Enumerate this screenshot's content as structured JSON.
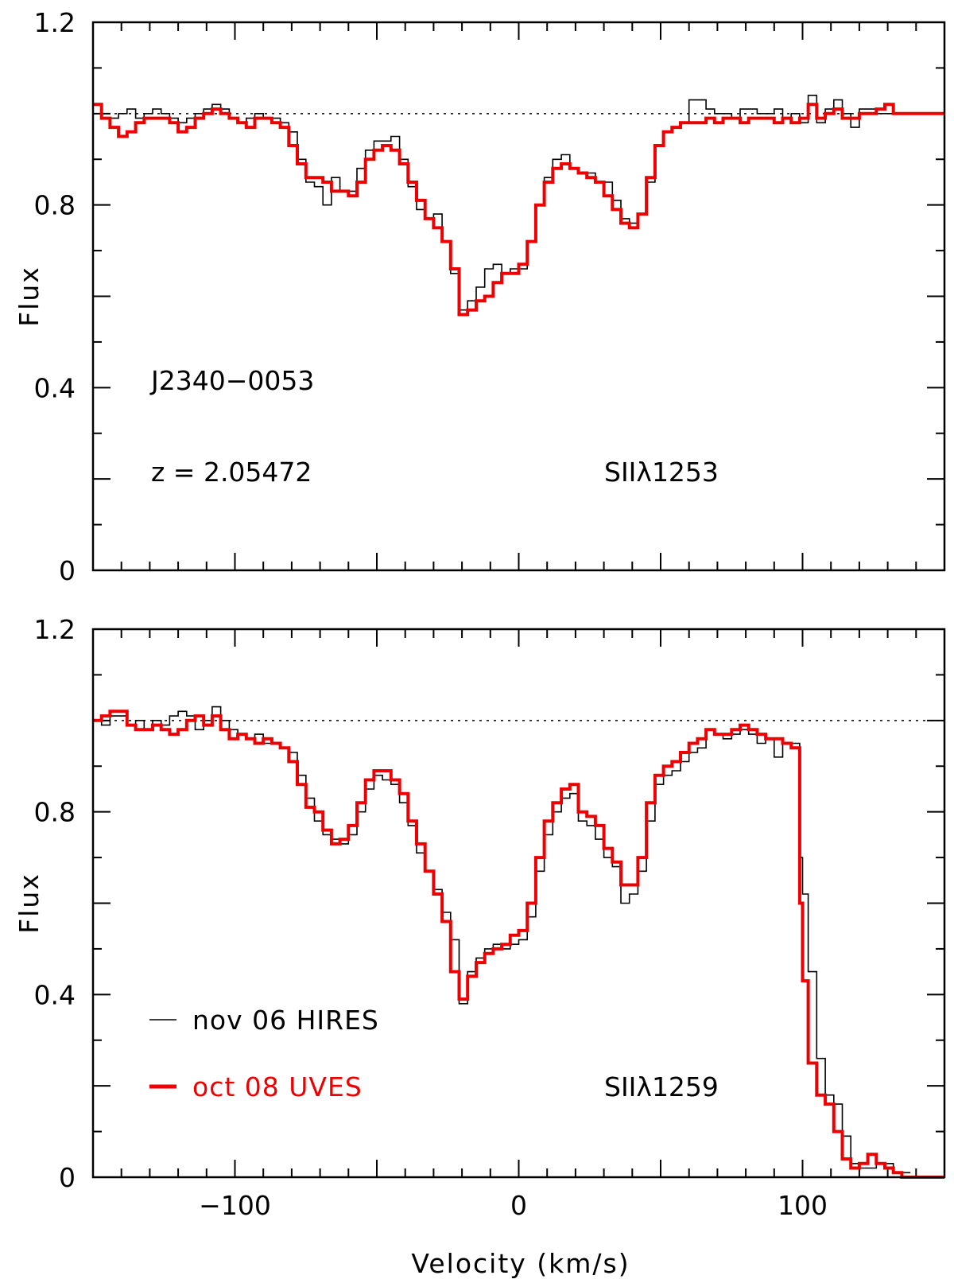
{
  "chart_data": [
    {
      "type": "line",
      "ylabel": "Flux",
      "xlabel": "",
      "xlim": [
        -150,
        150
      ],
      "ylim": [
        0,
        1.2
      ],
      "yticks": [
        "0",
        "0.4",
        "0.8",
        "1.2"
      ],
      "xticks": [],
      "continuum": 1.0,
      "annotations": {
        "object": "J2340−0053",
        "redshift": "z  =  2.05472",
        "line": "SIIλ1253"
      },
      "series": [
        {
          "name": "nov 06 HIRES",
          "color": "#000000",
          "x": [
            -150,
            -147,
            -144,
            -141,
            -138,
            -135,
            -132,
            -129,
            -126,
            -123,
            -120,
            -117,
            -114,
            -111,
            -108,
            -105,
            -102,
            -99,
            -96,
            -93,
            -90,
            -87,
            -84,
            -81,
            -78,
            -75,
            -72,
            -69,
            -66,
            -63,
            -60,
            -57,
            -54,
            -51,
            -48,
            -45,
            -42,
            -39,
            -36,
            -33,
            -30,
            -27,
            -24,
            -21,
            -18,
            -15,
            -12,
            -9,
            -6,
            -3,
            0,
            3,
            6,
            9,
            12,
            15,
            18,
            21,
            24,
            27,
            30,
            33,
            36,
            39,
            42,
            45,
            48,
            51,
            54,
            57,
            60,
            63,
            66,
            69,
            72,
            75,
            78,
            81,
            84,
            87,
            90,
            93,
            96,
            99,
            102,
            105,
            108,
            111,
            114,
            117,
            120,
            123,
            126,
            129
          ],
          "y": [
            1.0,
            0.99,
            0.99,
            1.0,
            1.01,
            0.99,
            1.0,
            1.01,
            1.0,
            0.99,
            0.98,
            0.99,
            1.0,
            1.01,
            1.02,
            1.01,
            0.99,
            0.98,
            0.99,
            1.0,
            0.99,
            0.99,
            0.98,
            0.96,
            0.9,
            0.85,
            0.84,
            0.8,
            0.86,
            0.83,
            0.83,
            0.88,
            0.92,
            0.94,
            0.94,
            0.95,
            0.9,
            0.84,
            0.79,
            0.77,
            0.78,
            0.72,
            0.65,
            0.57,
            0.59,
            0.62,
            0.66,
            0.67,
            0.65,
            0.66,
            0.66,
            0.72,
            0.8,
            0.86,
            0.9,
            0.91,
            0.88,
            0.87,
            0.87,
            0.85,
            0.85,
            0.81,
            0.77,
            0.76,
            0.78,
            0.85,
            0.93,
            0.96,
            0.97,
            0.98,
            1.03,
            1.03,
            1.01,
            1.0,
            1.0,
            0.99,
            1.01,
            1.01,
            1.0,
            1.0,
            1.01,
            0.99,
            1.0,
            0.98,
            1.04,
            0.98,
            1.01,
            1.03,
            1.0,
            0.97,
            1.01,
            1.01,
            1.0,
            1.0
          ]
        },
        {
          "name": "oct 08 UVES",
          "color": "#ee0000",
          "x": [
            -150,
            -147,
            -144,
            -141,
            -138,
            -135,
            -132,
            -129,
            -126,
            -123,
            -120,
            -117,
            -114,
            -111,
            -108,
            -105,
            -102,
            -99,
            -96,
            -93,
            -90,
            -87,
            -84,
            -81,
            -78,
            -75,
            -72,
            -69,
            -66,
            -63,
            -60,
            -57,
            -54,
            -51,
            -48,
            -45,
            -42,
            -39,
            -36,
            -33,
            -30,
            -27,
            -24,
            -21,
            -18,
            -15,
            -12,
            -9,
            -6,
            -3,
            0,
            3,
            6,
            9,
            12,
            15,
            18,
            21,
            24,
            27,
            30,
            33,
            36,
            39,
            42,
            45,
            48,
            51,
            54,
            57,
            60,
            63,
            66,
            69,
            72,
            75,
            78,
            81,
            84,
            87,
            90,
            93,
            96,
            99,
            102,
            105,
            108,
            111,
            114,
            117,
            120,
            123,
            126,
            129,
            132,
            135,
            138,
            141,
            144,
            147,
            150
          ],
          "y": [
            1.02,
            0.99,
            0.97,
            0.95,
            0.96,
            0.98,
            0.99,
            0.99,
            0.99,
            0.98,
            0.96,
            0.97,
            0.99,
            1.0,
            1.01,
            1.0,
            0.99,
            0.98,
            0.97,
            0.99,
            0.99,
            0.98,
            0.97,
            0.93,
            0.89,
            0.86,
            0.86,
            0.85,
            0.83,
            0.83,
            0.82,
            0.85,
            0.9,
            0.92,
            0.93,
            0.92,
            0.89,
            0.85,
            0.81,
            0.77,
            0.75,
            0.72,
            0.66,
            0.56,
            0.57,
            0.59,
            0.6,
            0.63,
            0.65,
            0.65,
            0.67,
            0.72,
            0.8,
            0.85,
            0.88,
            0.89,
            0.88,
            0.87,
            0.86,
            0.85,
            0.82,
            0.79,
            0.76,
            0.75,
            0.78,
            0.86,
            0.93,
            0.96,
            0.97,
            0.98,
            0.98,
            0.98,
            0.99,
            0.98,
            0.99,
            0.99,
            0.98,
            0.99,
            0.99,
            0.99,
            0.98,
            0.99,
            0.98,
            0.99,
            1.02,
            0.99,
            1.0,
            1.01,
            0.99,
            0.99,
            1.0,
            1.0,
            1.01,
            1.02,
            1.0,
            1.0,
            1.0,
            1.0,
            1.0,
            1.0,
            1.0
          ]
        }
      ]
    },
    {
      "type": "line",
      "ylabel": "Flux",
      "xlabel": "Velocity (km/s)",
      "xlim": [
        -150,
        150
      ],
      "ylim": [
        0,
        1.2
      ],
      "yticks": [
        "0",
        "0.4",
        "0.8",
        "1.2"
      ],
      "xticks": [
        "−100",
        "0",
        "100"
      ],
      "xtick_values": [
        -100,
        0,
        100
      ],
      "continuum": 1.0,
      "annotations": {
        "line": "SIIλ1259"
      },
      "legend": [
        {
          "label": "nov 06 HIRES",
          "color": "#000000"
        },
        {
          "label": "oct 08 UVES",
          "color": "#ee0000"
        }
      ],
      "series": [
        {
          "name": "nov 06 HIRES",
          "color": "#000000",
          "x": [
            -150,
            -147,
            -144,
            -141,
            -138,
            -135,
            -132,
            -129,
            -126,
            -123,
            -120,
            -117,
            -114,
            -111,
            -108,
            -105,
            -102,
            -99,
            -96,
            -93,
            -90,
            -87,
            -84,
            -81,
            -78,
            -75,
            -72,
            -69,
            -66,
            -63,
            -60,
            -57,
            -54,
            -51,
            -48,
            -45,
            -42,
            -39,
            -36,
            -33,
            -30,
            -27,
            -24,
            -21,
            -18,
            -15,
            -12,
            -9,
            -6,
            -3,
            0,
            3,
            6,
            9,
            12,
            15,
            18,
            21,
            24,
            27,
            30,
            33,
            36,
            39,
            42,
            45,
            48,
            51,
            54,
            57,
            60,
            63,
            66,
            69,
            72,
            75,
            78,
            81,
            84,
            87,
            90,
            93,
            96,
            99,
            100,
            102,
            105,
            108,
            111,
            114,
            117,
            120,
            123,
            126,
            129,
            132,
            135
          ],
          "y": [
            1.0,
            0.99,
            1.01,
            1.01,
            0.99,
            1.0,
            0.98,
            1.0,
            0.99,
            1.01,
            1.02,
            1.01,
            0.98,
            1.0,
            1.03,
            1.0,
            0.98,
            0.97,
            0.96,
            0.97,
            0.95,
            0.95,
            0.94,
            0.93,
            0.88,
            0.83,
            0.78,
            0.75,
            0.74,
            0.73,
            0.75,
            0.8,
            0.85,
            0.88,
            0.87,
            0.86,
            0.82,
            0.77,
            0.71,
            0.67,
            0.63,
            0.58,
            0.52,
            0.38,
            0.45,
            0.48,
            0.5,
            0.51,
            0.5,
            0.51,
            0.52,
            0.57,
            0.67,
            0.75,
            0.8,
            0.83,
            0.84,
            0.78,
            0.77,
            0.74,
            0.7,
            0.68,
            0.6,
            0.62,
            0.67,
            0.78,
            0.86,
            0.88,
            0.89,
            0.91,
            0.93,
            0.94,
            0.98,
            0.97,
            0.96,
            0.97,
            0.98,
            0.97,
            0.95,
            0.96,
            0.92,
            0.95,
            0.95,
            0.7,
            0.62,
            0.45,
            0.26,
            0.18,
            0.16,
            0.09,
            0.03,
            0.02,
            0.02,
            0.03,
            0.03,
            0.01,
            0.01
          ]
        },
        {
          "name": "oct 08 UVES",
          "color": "#ee0000",
          "x": [
            -150,
            -147,
            -144,
            -141,
            -138,
            -135,
            -132,
            -129,
            -126,
            -123,
            -120,
            -117,
            -114,
            -111,
            -108,
            -105,
            -102,
            -99,
            -96,
            -93,
            -90,
            -87,
            -84,
            -81,
            -78,
            -75,
            -72,
            -69,
            -66,
            -63,
            -60,
            -57,
            -54,
            -51,
            -48,
            -45,
            -42,
            -39,
            -36,
            -33,
            -30,
            -27,
            -24,
            -21,
            -18,
            -15,
            -12,
            -9,
            -6,
            -3,
            0,
            3,
            6,
            9,
            12,
            15,
            18,
            21,
            24,
            27,
            30,
            33,
            36,
            39,
            42,
            45,
            48,
            51,
            54,
            57,
            60,
            63,
            66,
            69,
            72,
            75,
            78,
            81,
            84,
            87,
            90,
            93,
            96,
            99,
            100,
            102,
            105,
            108,
            111,
            114,
            117,
            120,
            123,
            126,
            129,
            132,
            135,
            138,
            141,
            144,
            147,
            150
          ],
          "y": [
            1.0,
            1.01,
            1.02,
            1.02,
            0.99,
            0.98,
            0.98,
            0.99,
            0.98,
            0.97,
            0.98,
            1.0,
            1.01,
            0.99,
            1.01,
            0.98,
            0.96,
            0.97,
            0.96,
            0.95,
            0.96,
            0.95,
            0.94,
            0.91,
            0.86,
            0.81,
            0.8,
            0.76,
            0.73,
            0.74,
            0.77,
            0.82,
            0.87,
            0.89,
            0.89,
            0.87,
            0.84,
            0.78,
            0.73,
            0.67,
            0.62,
            0.56,
            0.45,
            0.39,
            0.44,
            0.47,
            0.49,
            0.5,
            0.51,
            0.53,
            0.54,
            0.6,
            0.7,
            0.78,
            0.82,
            0.85,
            0.86,
            0.8,
            0.79,
            0.77,
            0.72,
            0.69,
            0.64,
            0.64,
            0.7,
            0.82,
            0.88,
            0.9,
            0.91,
            0.93,
            0.95,
            0.96,
            0.98,
            0.97,
            0.97,
            0.98,
            0.99,
            0.98,
            0.97,
            0.96,
            0.96,
            0.95,
            0.94,
            0.6,
            0.43,
            0.25,
            0.18,
            0.16,
            0.1,
            0.04,
            0.02,
            0.03,
            0.05,
            0.03,
            0.02,
            0.01,
            0.0,
            0.0,
            0.0,
            0.0,
            0.0,
            0.0
          ]
        }
      ]
    }
  ]
}
